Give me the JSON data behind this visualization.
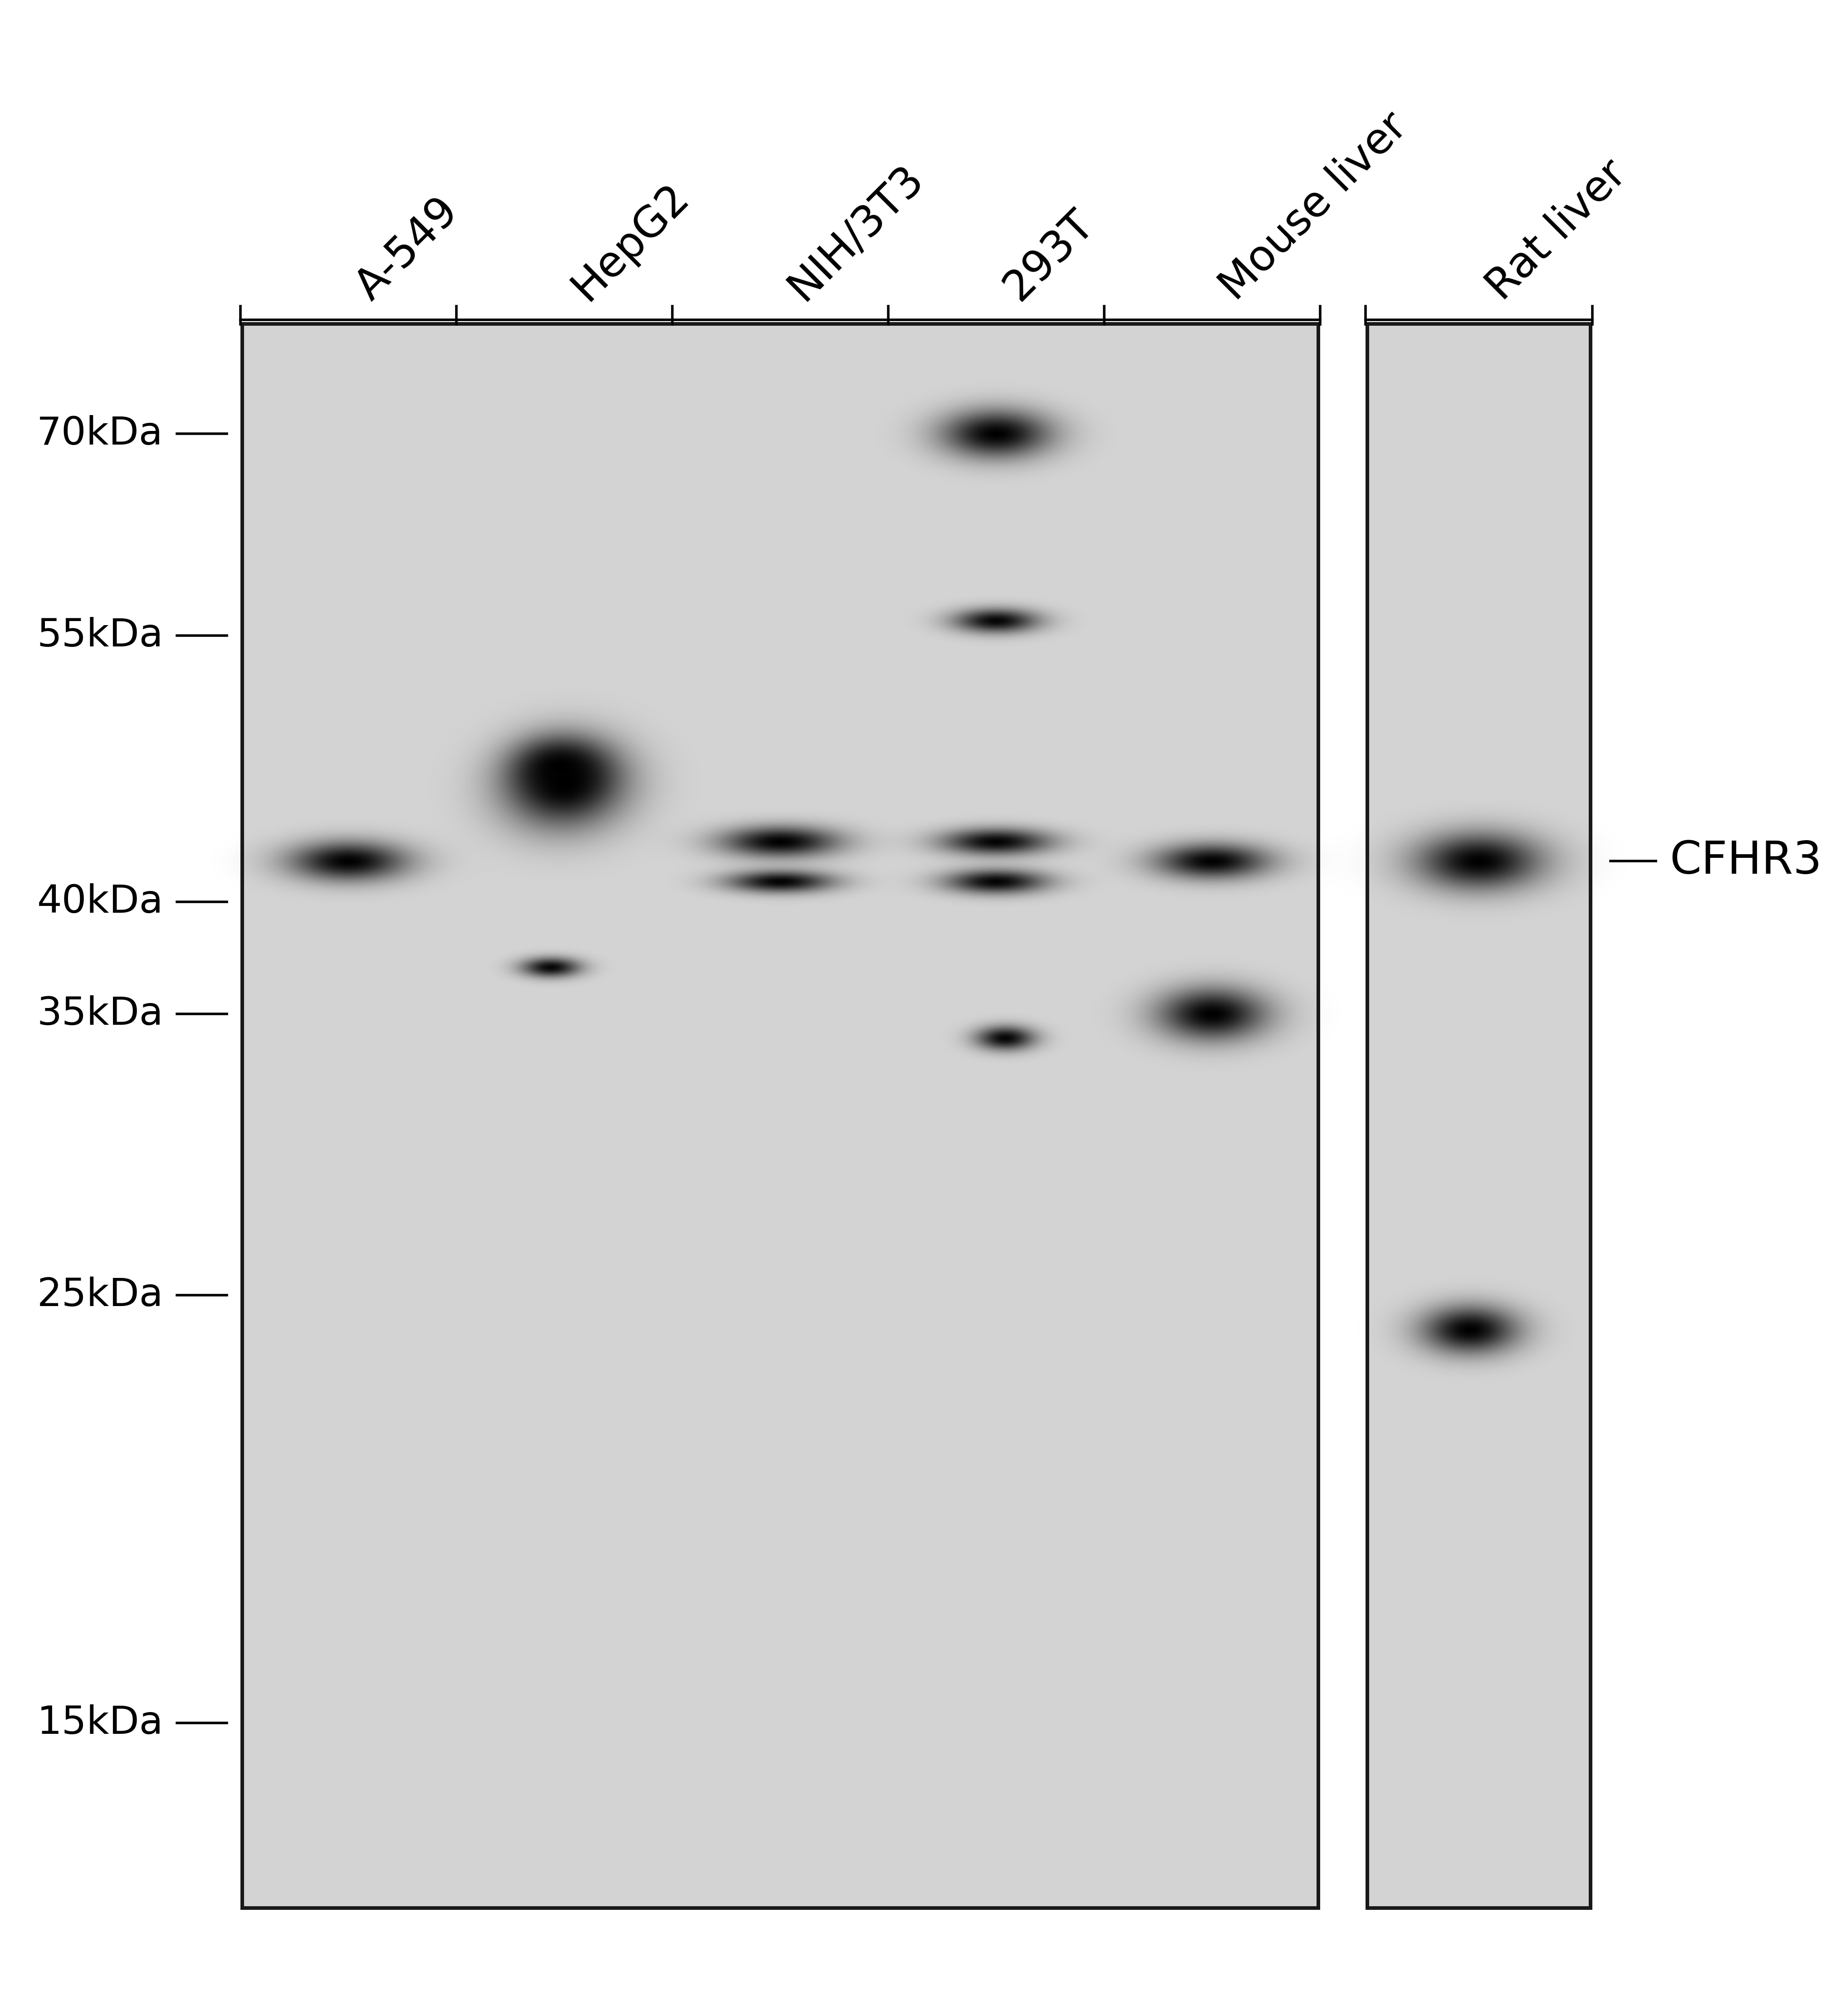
{
  "bg_color": "#d8d8d8",
  "white_bg": "#ffffff",
  "lane_labels": [
    "A-549",
    "HepG2",
    "NIH/3T3",
    "293T",
    "Mouse liver",
    "Rat liver"
  ],
  "mw_markers": [
    "70kDa",
    "55kDa",
    "40kDa",
    "35kDa",
    "25kDa",
    "15kDa"
  ],
  "annotation_label": "CFHR3",
  "fig_width": 38.4,
  "fig_height": 44.24,
  "font_size_labels": 68,
  "font_size_mw": 62,
  "font_size_annotation": 72
}
